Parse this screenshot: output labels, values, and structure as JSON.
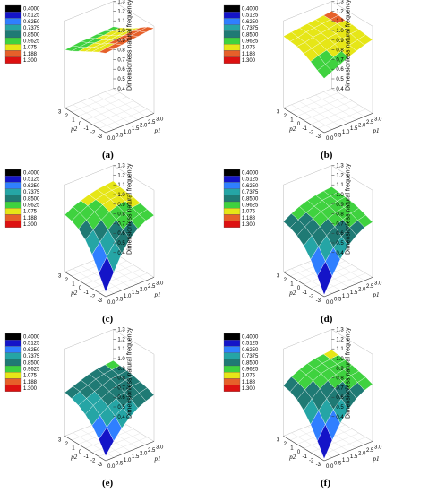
{
  "levels": [
    "0.4000",
    "0.5125",
    "0.6250",
    "0.7375",
    "0.8500",
    "0.9625",
    "1.075",
    "1.188",
    "1.300"
  ],
  "level_colors": [
    "#000000",
    "#1414c8",
    "#2f7fff",
    "#25a5a5",
    "#1f7a74",
    "#3fd23f",
    "#e6e617",
    "#e6602a",
    "#dd1111"
  ],
  "chart_data": [
    {
      "type": "surface",
      "label": "(a)",
      "x_label": "p1",
      "y_label": "p2",
      "z_label": "Dimensionless natural frequency",
      "x": [
        0.0,
        0.5,
        1.0,
        1.5,
        2.0,
        2.5,
        3.0
      ],
      "y": [
        -3,
        -2,
        -1,
        0,
        1,
        2,
        3
      ],
      "z_ticks": [
        "0.4",
        "0.5",
        "0.6",
        "0.7",
        "0.8",
        "0.9",
        "1.0",
        "1.1",
        "1.2",
        "1.3"
      ],
      "x_ticks": [
        "0.0",
        "0.5",
        "1.0",
        "1.5",
        "2.0",
        "2.5",
        "3.0"
      ],
      "y_ticks": [
        "-3",
        "-2",
        "-1",
        "0",
        "1",
        "2",
        "3"
      ],
      "z": [
        [
          1.22,
          1.23,
          1.24,
          1.25,
          1.26,
          1.27,
          1.28
        ],
        [
          1.19,
          1.2,
          1.21,
          1.22,
          1.23,
          1.24,
          1.25
        ],
        [
          1.15,
          1.16,
          1.17,
          1.18,
          1.19,
          1.2,
          1.2
        ],
        [
          1.11,
          1.12,
          1.12,
          1.13,
          1.14,
          1.15,
          1.15
        ],
        [
          1.07,
          1.08,
          1.09,
          1.09,
          1.1,
          1.11,
          1.11
        ],
        [
          1.03,
          1.04,
          1.05,
          1.06,
          1.06,
          1.07,
          1.07
        ],
        [
          1.0,
          1.01,
          1.02,
          1.02,
          1.03,
          1.03,
          1.04
        ]
      ]
    },
    {
      "type": "surface",
      "label": "(b)",
      "x_label": "p1",
      "y_label": "p2",
      "z_label": "Dimensionless natural frequency",
      "x": [
        0.0,
        0.5,
        1.0,
        1.5,
        2.0,
        2.5,
        3.0
      ],
      "y": [
        -3,
        -2,
        -1,
        0,
        1,
        2,
        3
      ],
      "z_ticks": [
        "0.4",
        "0.5",
        "0.6",
        "0.7",
        "0.8",
        "0.9",
        "1.0",
        "1.1",
        "1.2",
        "1.3"
      ],
      "x_ticks": [
        "0.0",
        "0.5",
        "1.0",
        "1.5",
        "2.0",
        "2.5",
        "3.0"
      ],
      "y_ticks": [
        "-3",
        "-2",
        "-1",
        "0",
        "1",
        "2",
        "3"
      ],
      "z": [
        [
          0.96,
          1.0,
          1.04,
          1.08,
          1.11,
          1.14,
          1.16
        ],
        [
          1.0,
          1.03,
          1.07,
          1.1,
          1.13,
          1.15,
          1.17
        ],
        [
          1.05,
          1.08,
          1.1,
          1.13,
          1.15,
          1.17,
          1.18
        ],
        [
          1.09,
          1.11,
          1.13,
          1.15,
          1.16,
          1.18,
          1.19
        ],
        [
          1.12,
          1.13,
          1.15,
          1.16,
          1.17,
          1.19,
          1.19
        ],
        [
          1.13,
          1.14,
          1.16,
          1.17,
          1.18,
          1.19,
          1.2
        ],
        [
          1.14,
          1.15,
          1.16,
          1.17,
          1.18,
          1.19,
          1.2
        ]
      ]
    },
    {
      "type": "surface",
      "label": "(c)",
      "x_label": "p1",
      "y_label": "p2",
      "z_label": "Dimensionless natural frequency",
      "x": [
        0.0,
        0.5,
        1.0,
        1.5,
        2.0,
        2.5,
        3.0
      ],
      "y": [
        -3,
        -2,
        -1,
        0,
        1,
        2,
        3
      ],
      "z_ticks": [
        "0.4",
        "0.5",
        "0.6",
        "0.7",
        "0.8",
        "0.9",
        "1.0",
        "1.1",
        "1.2",
        "1.3"
      ],
      "x_ticks": [
        "0.0",
        "0.5",
        "1.0",
        "1.5",
        "2.0",
        "2.5",
        "3.0"
      ],
      "y_ticks": [
        "-3",
        "-2",
        "-1",
        "0",
        "1",
        "2",
        "3"
      ],
      "z": [
        [
          0.45,
          0.62,
          0.78,
          0.9,
          0.97,
          1.02,
          1.04
        ],
        [
          0.6,
          0.74,
          0.86,
          0.95,
          1.01,
          1.04,
          1.06
        ],
        [
          0.75,
          0.85,
          0.94,
          1.01,
          1.05,
          1.07,
          1.08
        ],
        [
          0.86,
          0.93,
          1.0,
          1.05,
          1.08,
          1.09,
          1.1
        ],
        [
          0.93,
          0.99,
          1.04,
          1.08,
          1.1,
          1.11,
          1.11
        ],
        [
          0.97,
          1.02,
          1.06,
          1.09,
          1.11,
          1.12,
          1.12
        ],
        [
          0.99,
          1.04,
          1.07,
          1.1,
          1.12,
          1.13,
          1.14
        ]
      ]
    },
    {
      "type": "surface",
      "label": "(d)",
      "x_label": "p1",
      "y_label": "p2",
      "z_label": "Dimensionless natural frequency",
      "x": [
        0.0,
        0.5,
        1.0,
        1.5,
        2.0,
        2.5,
        3.0
      ],
      "y": [
        -3,
        -2,
        -1,
        0,
        1,
        2,
        3
      ],
      "z_ticks": [
        "0.4",
        "0.5",
        "0.6",
        "0.7",
        "0.8",
        "0.9",
        "1.0",
        "1.1",
        "1.2",
        "1.3"
      ],
      "x_ticks": [
        "0.0",
        "0.5",
        "1.0",
        "1.5",
        "2.0",
        "2.5",
        "3.0"
      ],
      "y_ticks": [
        "-3",
        "-2",
        "-1",
        "0",
        "1",
        "2",
        "3"
      ],
      "z": [
        [
          0.42,
          0.58,
          0.72,
          0.83,
          0.9,
          0.95,
          0.97
        ],
        [
          0.57,
          0.69,
          0.8,
          0.88,
          0.94,
          0.98,
          1.0
        ],
        [
          0.7,
          0.8,
          0.88,
          0.94,
          0.98,
          1.01,
          1.03
        ],
        [
          0.8,
          0.87,
          0.93,
          0.98,
          1.01,
          1.03,
          1.05
        ],
        [
          0.86,
          0.92,
          0.97,
          1.01,
          1.03,
          1.05,
          1.06
        ],
        [
          0.9,
          0.95,
          0.99,
          1.02,
          1.05,
          1.06,
          1.07
        ],
        [
          0.92,
          0.97,
          1.01,
          1.04,
          1.06,
          1.07,
          1.08
        ]
      ]
    },
    {
      "type": "surface",
      "label": "(e)",
      "x_label": "p1",
      "y_label": "p2",
      "z_label": "Dimensionless natural frequency",
      "x": [
        0.0,
        0.5,
        1.0,
        1.5,
        2.0,
        2.5,
        3.0
      ],
      "y": [
        -3,
        -2,
        -1,
        0,
        1,
        2,
        3
      ],
      "z_ticks": [
        "0.4",
        "0.5",
        "0.6",
        "0.7",
        "0.8",
        "0.9",
        "1.0",
        "1.1",
        "1.2",
        "1.3"
      ],
      "x_ticks": [
        "0.0",
        "0.5",
        "1.0",
        "1.5",
        "2.0",
        "2.5",
        "3.0"
      ],
      "y_ticks": [
        "-3",
        "-2",
        "-1",
        "0",
        "1",
        "2",
        "3"
      ],
      "z": [
        [
          0.45,
          0.57,
          0.67,
          0.75,
          0.81,
          0.85,
          0.88
        ],
        [
          0.58,
          0.67,
          0.75,
          0.81,
          0.86,
          0.89,
          0.91
        ],
        [
          0.68,
          0.75,
          0.81,
          0.86,
          0.89,
          0.92,
          0.93
        ],
        [
          0.75,
          0.81,
          0.85,
          0.89,
          0.92,
          0.94,
          0.95
        ],
        [
          0.8,
          0.84,
          0.88,
          0.91,
          0.94,
          0.95,
          0.96
        ],
        [
          0.83,
          0.87,
          0.9,
          0.93,
          0.95,
          0.96,
          0.97
        ],
        [
          0.85,
          0.88,
          0.91,
          0.94,
          0.96,
          0.97,
          0.98
        ]
      ]
    },
    {
      "type": "surface",
      "label": "(f)",
      "x_label": "p1",
      "y_label": "p2",
      "z_label": "Dimensionless natural frequency",
      "x": [
        0.0,
        0.5,
        1.0,
        1.5,
        2.0,
        2.5,
        3.0
      ],
      "y": [
        -3,
        -2,
        -1,
        0,
        1,
        2,
        3
      ],
      "z_ticks": [
        "0.4",
        "0.5",
        "0.6",
        "0.7",
        "0.8",
        "0.9",
        "1.0",
        "1.1",
        "1.2",
        "1.3"
      ],
      "x_ticks": [
        "0.0",
        "0.5",
        "1.0",
        "1.5",
        "2.0",
        "2.5",
        "3.0"
      ],
      "y_ticks": [
        "-3",
        "-2",
        "-1",
        "0",
        "1",
        "2",
        "3"
      ],
      "z": [
        [
          0.42,
          0.58,
          0.72,
          0.83,
          0.91,
          0.96,
          0.99
        ],
        [
          0.56,
          0.7,
          0.82,
          0.9,
          0.96,
          1.0,
          1.02
        ],
        [
          0.69,
          0.8,
          0.89,
          0.96,
          1.0,
          1.03,
          1.04
        ],
        [
          0.79,
          0.88,
          0.95,
          1.0,
          1.03,
          1.05,
          1.06
        ],
        [
          0.86,
          0.93,
          0.99,
          1.03,
          1.05,
          1.06,
          1.07
        ],
        [
          0.9,
          0.96,
          1.01,
          1.04,
          1.06,
          1.07,
          1.08
        ],
        [
          0.92,
          0.98,
          1.02,
          1.05,
          1.07,
          1.08,
          1.09
        ]
      ]
    }
  ]
}
